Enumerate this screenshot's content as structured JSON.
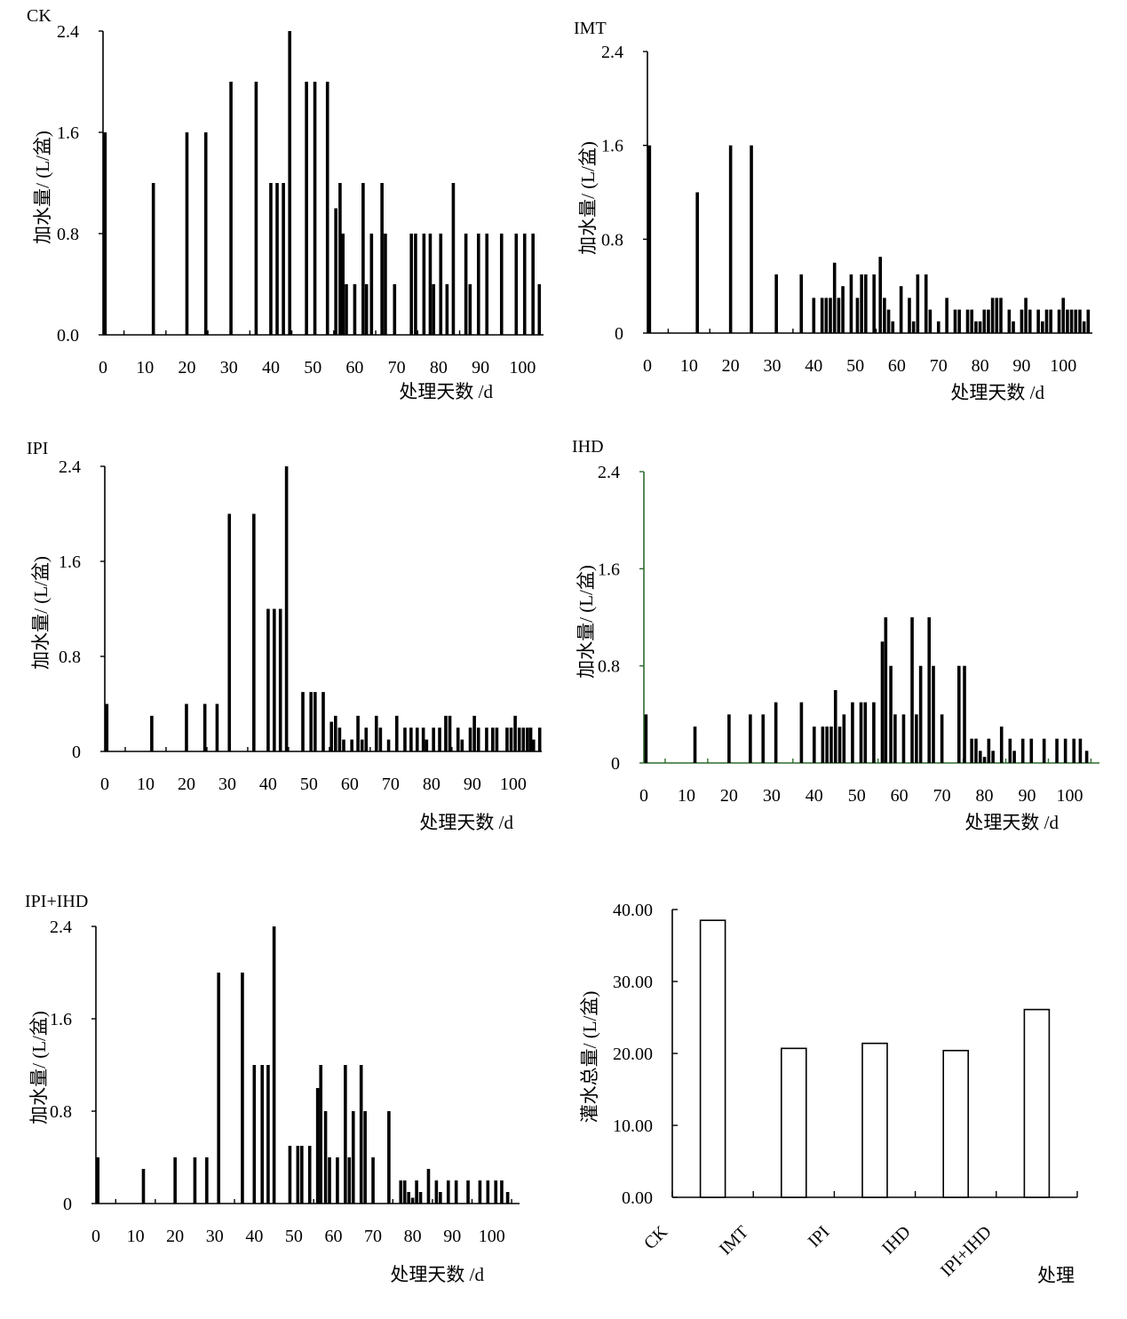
{
  "chart_data": [
    {
      "type": "bar",
      "title": "CK",
      "xlabel": "处理天数 /d",
      "ylabel": "加水量/ (L/盆)",
      "ylim": [
        0,
        2.4
      ],
      "xlim": [
        0,
        105
      ],
      "yticks": [
        "0.0",
        "0.8",
        "1.6",
        "2.4"
      ],
      "xticks": [
        0,
        10,
        20,
        30,
        40,
        50,
        60,
        70,
        80,
        90,
        100
      ],
      "axis_color": "#000000",
      "bars": [
        {
          "x": 0.5,
          "y": 1.6
        },
        {
          "x": 12,
          "y": 1.2
        },
        {
          "x": 20,
          "y": 1.6
        },
        {
          "x": 24.5,
          "y": 1.6
        },
        {
          "x": 30.5,
          "y": 2.0
        },
        {
          "x": 36.5,
          "y": 2.0
        },
        {
          "x": 40,
          "y": 1.2
        },
        {
          "x": 41.5,
          "y": 1.2
        },
        {
          "x": 43,
          "y": 1.2
        },
        {
          "x": 44.5,
          "y": 2.4
        },
        {
          "x": 48.5,
          "y": 2.0
        },
        {
          "x": 50.5,
          "y": 2.0
        },
        {
          "x": 53.5,
          "y": 2.0
        },
        {
          "x": 55.5,
          "y": 1.0
        },
        {
          "x": 56.5,
          "y": 1.2
        },
        {
          "x": 57.2,
          "y": 0.8
        },
        {
          "x": 58,
          "y": 0.4
        },
        {
          "x": 60,
          "y": 0.4
        },
        {
          "x": 62,
          "y": 1.2
        },
        {
          "x": 62.8,
          "y": 0.4
        },
        {
          "x": 64,
          "y": 0.8
        },
        {
          "x": 66.5,
          "y": 1.2
        },
        {
          "x": 67.3,
          "y": 0.8
        },
        {
          "x": 69.5,
          "y": 0.4
        },
        {
          "x": 73.5,
          "y": 0.8
        },
        {
          "x": 74.5,
          "y": 0.8
        },
        {
          "x": 76.5,
          "y": 0.8
        },
        {
          "x": 78,
          "y": 0.8
        },
        {
          "x": 78.8,
          "y": 0.4
        },
        {
          "x": 80.5,
          "y": 0.8
        },
        {
          "x": 82,
          "y": 0.4
        },
        {
          "x": 83.5,
          "y": 1.2
        },
        {
          "x": 86.5,
          "y": 0.8
        },
        {
          "x": 87.5,
          "y": 0.4
        },
        {
          "x": 89.5,
          "y": 0.8
        },
        {
          "x": 91.5,
          "y": 0.8
        },
        {
          "x": 95,
          "y": 0.8
        },
        {
          "x": 98.5,
          "y": 0.8
        },
        {
          "x": 100.5,
          "y": 0.8
        },
        {
          "x": 102.5,
          "y": 0.8
        },
        {
          "x": 104,
          "y": 0.4
        }
      ]
    },
    {
      "type": "bar",
      "title": "IMT",
      "xlabel": "处理天数 /d",
      "ylabel": "加水量/ (L/盆)",
      "ylim": [
        0,
        2.4
      ],
      "xlim": [
        0,
        107
      ],
      "yticks": [
        "0",
        "0.8",
        "1.6",
        "2.4"
      ],
      "xticks": [
        0,
        10,
        20,
        30,
        40,
        50,
        60,
        70,
        80,
        90,
        100
      ],
      "axis_color": "#000000",
      "bars": [
        {
          "x": 0.5,
          "y": 1.6
        },
        {
          "x": 12,
          "y": 1.2
        },
        {
          "x": 20,
          "y": 1.6
        },
        {
          "x": 25,
          "y": 1.6
        },
        {
          "x": 31,
          "y": 0.5
        },
        {
          "x": 37,
          "y": 0.5
        },
        {
          "x": 40,
          "y": 0.3
        },
        {
          "x": 42,
          "y": 0.3
        },
        {
          "x": 43,
          "y": 0.3
        },
        {
          "x": 44,
          "y": 0.3
        },
        {
          "x": 45,
          "y": 0.6
        },
        {
          "x": 46,
          "y": 0.3
        },
        {
          "x": 47,
          "y": 0.4
        },
        {
          "x": 49,
          "y": 0.5
        },
        {
          "x": 50.5,
          "y": 0.3
        },
        {
          "x": 51.5,
          "y": 0.5
        },
        {
          "x": 52.5,
          "y": 0.5
        },
        {
          "x": 54.5,
          "y": 0.5
        },
        {
          "x": 56,
          "y": 0.65
        },
        {
          "x": 57,
          "y": 0.3
        },
        {
          "x": 58,
          "y": 0.2
        },
        {
          "x": 59,
          "y": 0.1
        },
        {
          "x": 61,
          "y": 0.4
        },
        {
          "x": 63,
          "y": 0.3
        },
        {
          "x": 64,
          "y": 0.1
        },
        {
          "x": 65,
          "y": 0.5
        },
        {
          "x": 67,
          "y": 0.5
        },
        {
          "x": 68,
          "y": 0.2
        },
        {
          "x": 70,
          "y": 0.1
        },
        {
          "x": 72,
          "y": 0.3
        },
        {
          "x": 74,
          "y": 0.2
        },
        {
          "x": 75,
          "y": 0.2
        },
        {
          "x": 77,
          "y": 0.2
        },
        {
          "x": 78,
          "y": 0.2
        },
        {
          "x": 79,
          "y": 0.1
        },
        {
          "x": 80,
          "y": 0.1
        },
        {
          "x": 81,
          "y": 0.2
        },
        {
          "x": 82,
          "y": 0.2
        },
        {
          "x": 83,
          "y": 0.3
        },
        {
          "x": 84,
          "y": 0.3
        },
        {
          "x": 85,
          "y": 0.3
        },
        {
          "x": 87,
          "y": 0.2
        },
        {
          "x": 88,
          "y": 0.1
        },
        {
          "x": 90,
          "y": 0.2
        },
        {
          "x": 91,
          "y": 0.3
        },
        {
          "x": 92,
          "y": 0.2
        },
        {
          "x": 94,
          "y": 0.2
        },
        {
          "x": 95,
          "y": 0.1
        },
        {
          "x": 96,
          "y": 0.2
        },
        {
          "x": 97,
          "y": 0.2
        },
        {
          "x": 99,
          "y": 0.2
        },
        {
          "x": 100,
          "y": 0.3
        },
        {
          "x": 101,
          "y": 0.2
        },
        {
          "x": 102,
          "y": 0.2
        },
        {
          "x": 103,
          "y": 0.2
        },
        {
          "x": 104,
          "y": 0.2
        },
        {
          "x": 105,
          "y": 0.1
        },
        {
          "x": 106,
          "y": 0.2
        }
      ]
    },
    {
      "type": "bar",
      "title": "IPI",
      "xlabel": "处理天数 /d",
      "ylabel": "加水量/ (L/盆)",
      "ylim": [
        0,
        2.4
      ],
      "xlim": [
        0,
        107
      ],
      "yticks": [
        "0",
        "0.8",
        "1.6",
        "2.4"
      ],
      "xticks": [
        0,
        10,
        20,
        30,
        40,
        50,
        60,
        70,
        80,
        90,
        100
      ],
      "axis_color": "#000000",
      "bars": [
        {
          "x": 0.5,
          "y": 0.4
        },
        {
          "x": 11.5,
          "y": 0.3
        },
        {
          "x": 20,
          "y": 0.4
        },
        {
          "x": 24.5,
          "y": 0.4
        },
        {
          "x": 27.5,
          "y": 0.4
        },
        {
          "x": 30.5,
          "y": 2.0
        },
        {
          "x": 36.5,
          "y": 2.0
        },
        {
          "x": 40,
          "y": 1.2
        },
        {
          "x": 41.5,
          "y": 1.2
        },
        {
          "x": 43,
          "y": 1.2
        },
        {
          "x": 44.5,
          "y": 2.4
        },
        {
          "x": 48.5,
          "y": 0.5
        },
        {
          "x": 50.5,
          "y": 0.5
        },
        {
          "x": 51.5,
          "y": 0.5
        },
        {
          "x": 53.5,
          "y": 0.5
        },
        {
          "x": 55.5,
          "y": 0.25
        },
        {
          "x": 56.5,
          "y": 0.3
        },
        {
          "x": 57.5,
          "y": 0.2
        },
        {
          "x": 58.5,
          "y": 0.1
        },
        {
          "x": 60.5,
          "y": 0.1
        },
        {
          "x": 62,
          "y": 0.3
        },
        {
          "x": 63,
          "y": 0.1
        },
        {
          "x": 64,
          "y": 0.2
        },
        {
          "x": 66.5,
          "y": 0.3
        },
        {
          "x": 67.5,
          "y": 0.2
        },
        {
          "x": 69.5,
          "y": 0.1
        },
        {
          "x": 71.5,
          "y": 0.3
        },
        {
          "x": 73.5,
          "y": 0.2
        },
        {
          "x": 75,
          "y": 0.2
        },
        {
          "x": 76.5,
          "y": 0.2
        },
        {
          "x": 78,
          "y": 0.2
        },
        {
          "x": 78.8,
          "y": 0.1
        },
        {
          "x": 80.5,
          "y": 0.2
        },
        {
          "x": 82,
          "y": 0.2
        },
        {
          "x": 83.5,
          "y": 0.3
        },
        {
          "x": 84.5,
          "y": 0.3
        },
        {
          "x": 86.5,
          "y": 0.2
        },
        {
          "x": 87.5,
          "y": 0.1
        },
        {
          "x": 89.5,
          "y": 0.2
        },
        {
          "x": 90.5,
          "y": 0.3
        },
        {
          "x": 91.5,
          "y": 0.2
        },
        {
          "x": 93.5,
          "y": 0.2
        },
        {
          "x": 95,
          "y": 0.2
        },
        {
          "x": 96,
          "y": 0.2
        },
        {
          "x": 98.5,
          "y": 0.2
        },
        {
          "x": 99.5,
          "y": 0.2
        },
        {
          "x": 100.5,
          "y": 0.3
        },
        {
          "x": 101.5,
          "y": 0.2
        },
        {
          "x": 102.5,
          "y": 0.2
        },
        {
          "x": 103.5,
          "y": 0.2
        },
        {
          "x": 104.3,
          "y": 0.2
        },
        {
          "x": 105,
          "y": 0.1
        },
        {
          "x": 106.5,
          "y": 0.2
        }
      ]
    },
    {
      "type": "bar",
      "title": "IHD",
      "xlabel": "处理天数 /d",
      "ylabel": "加水量/ (L/盆)",
      "ylim": [
        0,
        2.4
      ],
      "xlim": [
        0,
        107
      ],
      "yticks": [
        "0",
        "0.8",
        "1.6",
        "2.4"
      ],
      "xticks": [
        0,
        10,
        20,
        30,
        40,
        50,
        60,
        70,
        80,
        90,
        100
      ],
      "axis_color": "#2e6b2e",
      "bars": [
        {
          "x": 0.5,
          "y": 0.4
        },
        {
          "x": 12,
          "y": 0.3
        },
        {
          "x": 20,
          "y": 0.4
        },
        {
          "x": 25,
          "y": 0.4
        },
        {
          "x": 28,
          "y": 0.4
        },
        {
          "x": 31,
          "y": 0.5
        },
        {
          "x": 37,
          "y": 0.5
        },
        {
          "x": 40,
          "y": 0.3
        },
        {
          "x": 42,
          "y": 0.3
        },
        {
          "x": 43,
          "y": 0.3
        },
        {
          "x": 44,
          "y": 0.3
        },
        {
          "x": 45,
          "y": 0.6
        },
        {
          "x": 46,
          "y": 0.3
        },
        {
          "x": 47,
          "y": 0.4
        },
        {
          "x": 49,
          "y": 0.5
        },
        {
          "x": 51,
          "y": 0.5
        },
        {
          "x": 52,
          "y": 0.5
        },
        {
          "x": 54,
          "y": 0.5
        },
        {
          "x": 56,
          "y": 1.0
        },
        {
          "x": 56.8,
          "y": 1.2
        },
        {
          "x": 58,
          "y": 0.8
        },
        {
          "x": 59,
          "y": 0.4
        },
        {
          "x": 61,
          "y": 0.4
        },
        {
          "x": 63,
          "y": 1.2
        },
        {
          "x": 64,
          "y": 0.4
        },
        {
          "x": 65,
          "y": 0.8
        },
        {
          "x": 67,
          "y": 1.2
        },
        {
          "x": 68,
          "y": 0.8
        },
        {
          "x": 70,
          "y": 0.4
        },
        {
          "x": 74,
          "y": 0.8
        },
        {
          "x": 75.3,
          "y": 0.8
        },
        {
          "x": 77,
          "y": 0.2
        },
        {
          "x": 78,
          "y": 0.2
        },
        {
          "x": 79,
          "y": 0.1
        },
        {
          "x": 80,
          "y": 0.05
        },
        {
          "x": 81,
          "y": 0.2
        },
        {
          "x": 82,
          "y": 0.1
        },
        {
          "x": 84,
          "y": 0.3
        },
        {
          "x": 86,
          "y": 0.2
        },
        {
          "x": 87,
          "y": 0.1
        },
        {
          "x": 89,
          "y": 0.2
        },
        {
          "x": 91,
          "y": 0.2
        },
        {
          "x": 94,
          "y": 0.2
        },
        {
          "x": 97,
          "y": 0.2
        },
        {
          "x": 99,
          "y": 0.2
        },
        {
          "x": 101,
          "y": 0.2
        },
        {
          "x": 102.5,
          "y": 0.2
        },
        {
          "x": 104,
          "y": 0.1
        }
      ]
    },
    {
      "type": "bar",
      "title": "IPI+IHD",
      "xlabel": "处理天数 /d",
      "ylabel": "加水量/ (L/盆)",
      "ylim": [
        0,
        2.4
      ],
      "xlim": [
        0,
        107
      ],
      "yticks": [
        "0",
        "0.8",
        "1.6",
        "2.4"
      ],
      "xticks": [
        0,
        10,
        20,
        30,
        40,
        50,
        60,
        70,
        80,
        90,
        100
      ],
      "axis_color": "#000000",
      "bars": [
        {
          "x": 0.5,
          "y": 0.4
        },
        {
          "x": 12,
          "y": 0.3
        },
        {
          "x": 20,
          "y": 0.4
        },
        {
          "x": 25,
          "y": 0.4
        },
        {
          "x": 28,
          "y": 0.4
        },
        {
          "x": 31,
          "y": 2.0
        },
        {
          "x": 37,
          "y": 2.0
        },
        {
          "x": 40,
          "y": 1.2
        },
        {
          "x": 42,
          "y": 1.2
        },
        {
          "x": 43.5,
          "y": 1.2
        },
        {
          "x": 45,
          "y": 2.4
        },
        {
          "x": 49,
          "y": 0.5
        },
        {
          "x": 51,
          "y": 0.5
        },
        {
          "x": 52,
          "y": 0.5
        },
        {
          "x": 54,
          "y": 0.5
        },
        {
          "x": 56,
          "y": 1.0
        },
        {
          "x": 56.8,
          "y": 1.2
        },
        {
          "x": 58,
          "y": 0.8
        },
        {
          "x": 59,
          "y": 0.4
        },
        {
          "x": 61,
          "y": 0.4
        },
        {
          "x": 63,
          "y": 1.2
        },
        {
          "x": 64,
          "y": 0.4
        },
        {
          "x": 65,
          "y": 0.8
        },
        {
          "x": 67,
          "y": 1.2
        },
        {
          "x": 68,
          "y": 0.8
        },
        {
          "x": 70,
          "y": 0.4
        },
        {
          "x": 74,
          "y": 0.8
        },
        {
          "x": 77,
          "y": 0.2
        },
        {
          "x": 78,
          "y": 0.2
        },
        {
          "x": 79,
          "y": 0.1
        },
        {
          "x": 80,
          "y": 0.05
        },
        {
          "x": 81,
          "y": 0.2
        },
        {
          "x": 82,
          "y": 0.1
        },
        {
          "x": 84,
          "y": 0.3
        },
        {
          "x": 86,
          "y": 0.2
        },
        {
          "x": 87,
          "y": 0.1
        },
        {
          "x": 89,
          "y": 0.2
        },
        {
          "x": 91,
          "y": 0.2
        },
        {
          "x": 94,
          "y": 0.2
        },
        {
          "x": 97,
          "y": 0.2
        },
        {
          "x": 99,
          "y": 0.2
        },
        {
          "x": 101,
          "y": 0.2
        },
        {
          "x": 102.5,
          "y": 0.2
        },
        {
          "x": 104,
          "y": 0.1
        }
      ]
    },
    {
      "type": "bar",
      "title": "",
      "xlabel": "处理",
      "ylabel": "灌水总量/ (L/盆)",
      "ylim": [
        0,
        40
      ],
      "yticks": [
        "0.00",
        "10.00",
        "20.00",
        "30.00",
        "40.00"
      ],
      "categories": [
        "CK",
        "IMT",
        "IPI",
        "IHD",
        "IPI+IHD"
      ],
      "values": [
        38.5,
        20.7,
        21.4,
        20.4,
        26.1
      ],
      "bar_fill": "#ffffff",
      "axis_color": "#000000"
    }
  ]
}
